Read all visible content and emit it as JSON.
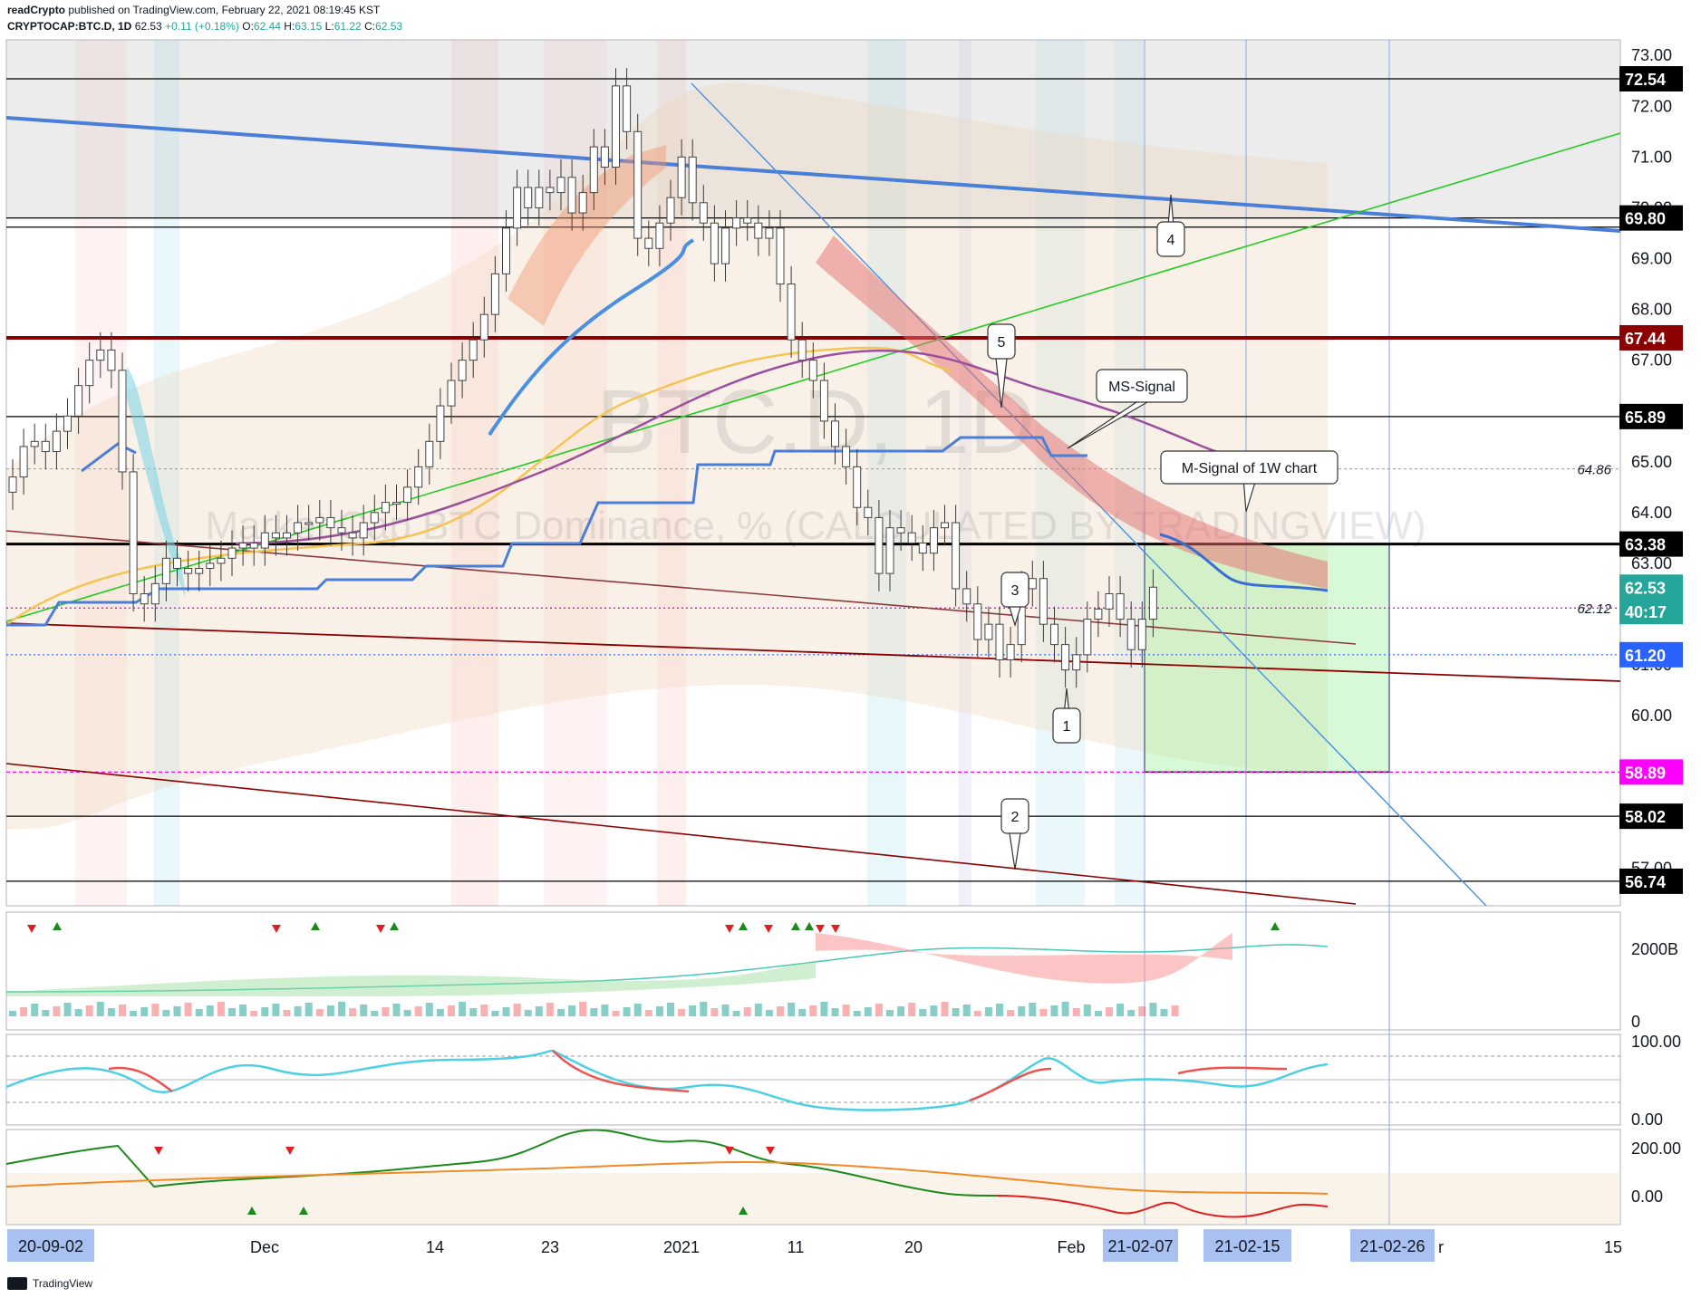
{
  "header": {
    "line1_user": "readCrypto",
    "line1_text": "published on TradingView.com, February 22, 2021 08:19:45 KST",
    "symbol": "CRYPTOCAP:BTC.D, 1D",
    "last": "62.53",
    "change": "+0.11 (+0.18%)",
    "o_label": "O:",
    "o": "62.44",
    "h_label": "H:",
    "h": "63.15",
    "l_label": "L:",
    "l": "61.22",
    "c_label": "C:",
    "c": "62.53"
  },
  "watermark": {
    "symbol": "BTC.D, 1D",
    "description": "Market Cap BTC Dominance, % (CALCULATED BY TRADINGVIEW)"
  },
  "annotations": {
    "ms_signal": "MS-Signal",
    "m_signal_1w": "M-Signal of 1W chart",
    "n1": "1",
    "n2": "2",
    "n3": "3",
    "n4": "4",
    "n5": "5",
    "dotted_64": "64.86",
    "dotted_62": "62.12"
  },
  "price_axis": {
    "ticks": [
      "73.00",
      "72.00",
      "71.00",
      "70.00",
      "69.00",
      "68.00",
      "67.00",
      "66.00",
      "65.00",
      "64.00",
      "63.00",
      "62.00",
      "61.00",
      "60.00",
      "59.00",
      "58.00",
      "57.00"
    ],
    "tags": [
      {
        "label": "72.54",
        "value": 72.54,
        "bg": "#000000",
        "fg": "#ffffff"
      },
      {
        "label": "69.80",
        "value": 69.8,
        "bg": "#000000",
        "fg": "#ffffff"
      },
      {
        "label": "67.44",
        "value": 67.44,
        "bg": "#8b0000",
        "fg": "#ffffff"
      },
      {
        "label": "65.89",
        "value": 65.89,
        "bg": "#000000",
        "fg": "#ffffff"
      },
      {
        "label": "63.38",
        "value": 63.38,
        "bg": "#000000",
        "fg": "#ffffff"
      },
      {
        "label": "62.53",
        "value": 62.53,
        "bg": "#26a69a",
        "fg": "#ffffff"
      },
      {
        "label": "40:17",
        "value": 62.05,
        "bg": "#26a69a",
        "fg": "#ffffff"
      },
      {
        "label": "61.20",
        "value": 61.2,
        "bg": "#2962ff",
        "fg": "#ffffff"
      },
      {
        "label": "58.89",
        "value": 58.89,
        "bg": "#ff00ff",
        "fg": "#ffffff"
      },
      {
        "label": "58.02",
        "value": 58.02,
        "bg": "#000000",
        "fg": "#ffffff"
      },
      {
        "label": "56.74",
        "value": 56.74,
        "bg": "#000000",
        "fg": "#ffffff"
      }
    ]
  },
  "volume_axis": {
    "ticks": [
      "2000B",
      "0"
    ]
  },
  "osc1_axis": {
    "ticks": [
      "100.00",
      "0.00"
    ]
  },
  "osc2_axis": {
    "ticks": [
      "200.00",
      "0.00"
    ]
  },
  "time_axis": {
    "labels": [
      "Dec",
      "14",
      "23",
      "2021",
      "11",
      "20",
      "Feb",
      "r",
      "15"
    ],
    "tags": [
      "20-09-02",
      "21-02-07",
      "21-02-15",
      "21-02-26"
    ]
  },
  "footer": {
    "brand": "TradingView"
  },
  "colors": {
    "up_candle": "#26a69a",
    "down_candle": "#ef5350",
    "blue_line": "#4a7fd9",
    "dark_red_line": "#8b0000",
    "green_line": "#22c55e",
    "yellow_ma": "#f5c454",
    "purple_ma": "#9c4f9e"
  },
  "chart_data": {
    "type": "line",
    "title": "CRYPTOCAP:BTC.D, 1D",
    "ylabel": "",
    "ylim": [
      56.5,
      73.3
    ],
    "ohlc_last": {
      "open": 62.44,
      "high": 63.15,
      "low": 61.22,
      "close": 62.53
    },
    "horizontal_levels": [
      72.54,
      69.8,
      67.44,
      65.89,
      63.38,
      62.12,
      61.2,
      58.89,
      58.02,
      56.74,
      64.86
    ],
    "series": [
      {
        "values": [
          64.7,
          65.3,
          65.4,
          65.2,
          65.6,
          65.9,
          66.5,
          67.0,
          67.2,
          66.8,
          64.8,
          62.4,
          62.2,
          62.6,
          63.1,
          62.9,
          62.8,
          62.9,
          63.0,
          63.1,
          63.3,
          63.4,
          63.3,
          63.6,
          63.5,
          63.6,
          63.8,
          63.8,
          63.9,
          63.7,
          63.6,
          63.5,
          63.8,
          64.0,
          64.2,
          64.2,
          64.5,
          64.9,
          65.4,
          66.1,
          66.6,
          67.0,
          67.4,
          67.9,
          68.7,
          69.6,
          70.4,
          70.0,
          70.4,
          70.3,
          70.6,
          69.9,
          70.3,
          71.2,
          70.8,
          72.4,
          71.5,
          69.4,
          69.2,
          69.7,
          70.2,
          71.0,
          70.1,
          69.7,
          68.9,
          69.6,
          69.8,
          69.7,
          69.4,
          69.6,
          68.5,
          67.4,
          67.0,
          66.6,
          65.8,
          65.3,
          64.9,
          64.1,
          63.9,
          62.8,
          63.7,
          63.6,
          63.4,
          63.2,
          63.7,
          63.8,
          62.5,
          62.2,
          61.5,
          61.8,
          61.1,
          61.4,
          62.5,
          62.7,
          61.8,
          61.4,
          60.9,
          61.2,
          61.9,
          62.1,
          62.4,
          61.9,
          61.3,
          61.9,
          62.53
        ]
      }
    ]
  }
}
